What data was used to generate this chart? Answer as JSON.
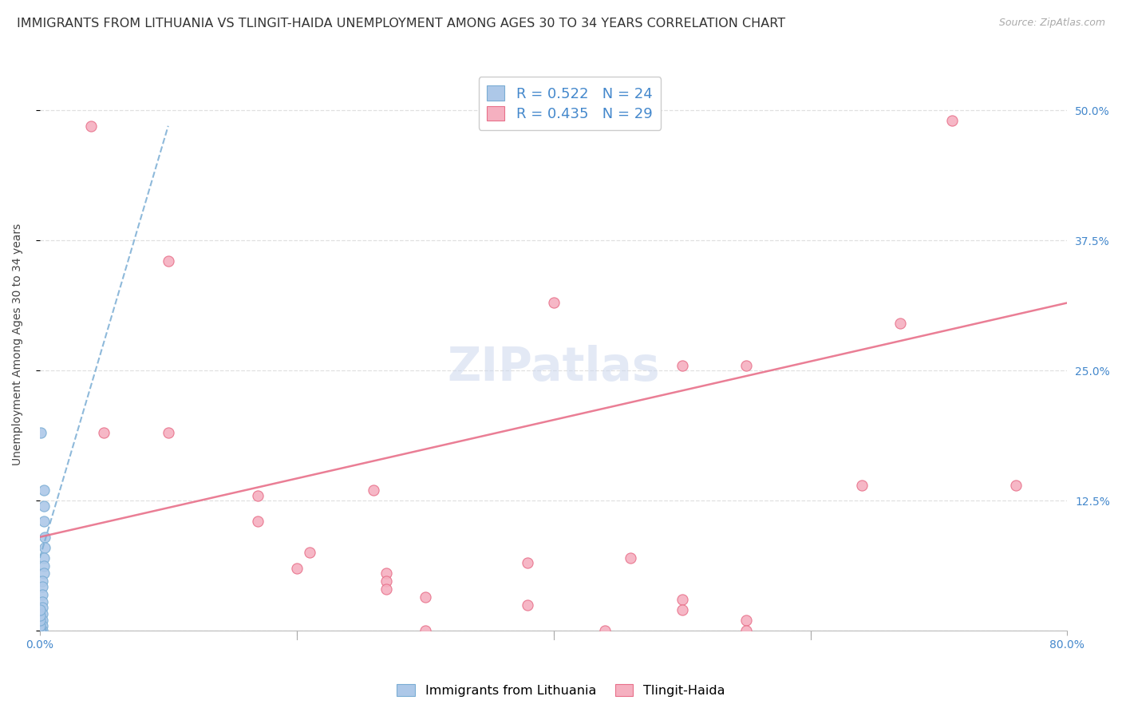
{
  "title": "IMMIGRANTS FROM LITHUANIA VS TLINGIT-HAIDA UNEMPLOYMENT AMONG AGES 30 TO 34 YEARS CORRELATION CHART",
  "source": "Source: ZipAtlas.com",
  "ylabel": "Unemployment Among Ages 30 to 34 years",
  "xlim": [
    0.0,
    0.8
  ],
  "ylim": [
    0.0,
    0.55
  ],
  "ytick_positions": [
    0.0,
    0.125,
    0.25,
    0.375,
    0.5
  ],
  "yticklabels_right": [
    "",
    "12.5%",
    "25.0%",
    "37.5%",
    "50.0%"
  ],
  "background_color": "#ffffff",
  "grid_color": "#e0e0e0",
  "blue_scatter": [
    [
      0.001,
      0.19
    ],
    [
      0.003,
      0.135
    ],
    [
      0.003,
      0.12
    ],
    [
      0.003,
      0.105
    ],
    [
      0.004,
      0.09
    ],
    [
      0.004,
      0.08
    ],
    [
      0.003,
      0.07
    ],
    [
      0.003,
      0.062
    ],
    [
      0.003,
      0.055
    ],
    [
      0.002,
      0.048
    ],
    [
      0.002,
      0.042
    ],
    [
      0.002,
      0.035
    ],
    [
      0.002,
      0.028
    ],
    [
      0.002,
      0.022
    ],
    [
      0.002,
      0.016
    ],
    [
      0.002,
      0.01
    ],
    [
      0.002,
      0.005
    ],
    [
      0.002,
      0.0
    ],
    [
      0.001,
      0.0
    ],
    [
      0.0,
      0.0
    ],
    [
      0.0,
      0.005
    ],
    [
      0.0,
      0.01
    ],
    [
      0.0,
      0.015
    ],
    [
      0.0,
      0.02
    ]
  ],
  "pink_scatter": [
    [
      0.04,
      0.485
    ],
    [
      0.1,
      0.355
    ],
    [
      0.05,
      0.19
    ],
    [
      0.1,
      0.19
    ],
    [
      0.4,
      0.315
    ],
    [
      0.5,
      0.255
    ],
    [
      0.55,
      0.255
    ],
    [
      0.67,
      0.295
    ],
    [
      0.71,
      0.49
    ],
    [
      0.17,
      0.13
    ],
    [
      0.26,
      0.135
    ],
    [
      0.17,
      0.105
    ],
    [
      0.21,
      0.075
    ],
    [
      0.2,
      0.06
    ],
    [
      0.27,
      0.055
    ],
    [
      0.27,
      0.048
    ],
    [
      0.27,
      0.04
    ],
    [
      0.3,
      0.032
    ],
    [
      0.38,
      0.065
    ],
    [
      0.46,
      0.07
    ],
    [
      0.5,
      0.03
    ],
    [
      0.5,
      0.02
    ],
    [
      0.55,
      0.01
    ],
    [
      0.64,
      0.14
    ],
    [
      0.76,
      0.14
    ],
    [
      0.38,
      0.025
    ],
    [
      0.44,
      0.0
    ],
    [
      0.55,
      0.0
    ],
    [
      0.3,
      0.0
    ]
  ],
  "blue_line_x": [
    0.0,
    0.1
  ],
  "blue_line_y": [
    0.07,
    0.485
  ],
  "pink_line_x": [
    0.0,
    0.8
  ],
  "pink_line_y": [
    0.09,
    0.315
  ],
  "blue_R": "0.522",
  "blue_N": "24",
  "pink_R": "0.435",
  "pink_N": "29",
  "blue_color": "#adc8e8",
  "blue_edge_color": "#7aadd4",
  "blue_line_color": "#7aadd4",
  "pink_color": "#f5b0c0",
  "pink_edge_color": "#e8708a",
  "pink_line_color": "#e8708a",
  "scatter_size": 90,
  "title_fontsize": 11.5,
  "axis_label_fontsize": 10,
  "tick_fontsize": 10,
  "legend_fontsize": 13
}
